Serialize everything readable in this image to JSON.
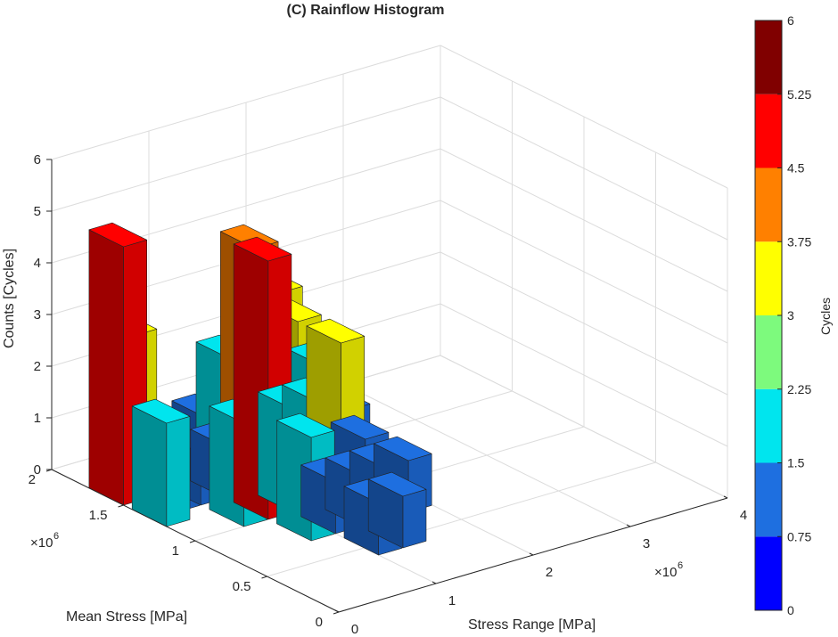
{
  "chart_data": {
    "type": "bar3d",
    "title": "(C) Rainflow Histogram",
    "xlabel": "Stress Range [MPa]",
    "ylabel": "Mean Stress [MPa]",
    "zlabel": "Counts [Cycles]",
    "x_exponent_label": "×10",
    "x_exponent_power": "6",
    "y_exponent_label": "×10",
    "y_exponent_power": "6",
    "xlim": [
      0,
      4000000
    ],
    "ylim": [
      0,
      2000000
    ],
    "zlim": [
      0,
      6
    ],
    "x_ticks": [
      {
        "value": 0,
        "label": "0"
      },
      {
        "value": 1000000,
        "label": "1"
      },
      {
        "value": 2000000,
        "label": "2"
      },
      {
        "value": 3000000,
        "label": "3"
      },
      {
        "value": 4000000,
        "label": "4"
      }
    ],
    "y_ticks": [
      {
        "value": 0,
        "label": "0"
      },
      {
        "value": 500000,
        "label": "0.5"
      },
      {
        "value": 1000000,
        "label": "1"
      },
      {
        "value": 1500000,
        "label": "1.5"
      },
      {
        "value": 2000000,
        "label": "2"
      }
    ],
    "z_ticks": [
      {
        "value": 0,
        "label": "0"
      },
      {
        "value": 1,
        "label": "1"
      },
      {
        "value": 2,
        "label": "2"
      },
      {
        "value": 3,
        "label": "3"
      },
      {
        "value": 4,
        "label": "4"
      },
      {
        "value": 5,
        "label": "5"
      },
      {
        "value": 6,
        "label": "6"
      }
    ],
    "grid": true,
    "colorbar": {
      "label": "Cycles",
      "range": [
        0,
        6
      ],
      "tick_labels": [
        "0",
        "0.75",
        "1.5",
        "2.25",
        "3",
        "3.75",
        "4.5",
        "5.25",
        "6"
      ],
      "colors": [
        "#0000ff",
        "#1e6fe0",
        "#00e5ee",
        "#7dfa7d",
        "#ffff00",
        "#ff8000",
        "#ff0000",
        "#800000"
      ]
    },
    "bins": [
      {
        "x": 0.0,
        "y": 1.5,
        "count": 5
      },
      {
        "x": 0.0,
        "y": 1.2,
        "count": 2
      },
      {
        "x": 0.25,
        "y": 1.6,
        "count": 3
      },
      {
        "x": 0.25,
        "y": 1.3,
        "count": 1
      },
      {
        "x": 0.5,
        "y": 1.6,
        "count": 1
      },
      {
        "x": 0.5,
        "y": 1.3,
        "count": 1
      },
      {
        "x": 0.5,
        "y": 1.0,
        "count": 2
      },
      {
        "x": 0.75,
        "y": 1.3,
        "count": 1
      },
      {
        "x": 0.75,
        "y": 1.0,
        "count": 5
      },
      {
        "x": 0.75,
        "y": 0.7,
        "count": 2
      },
      {
        "x": 1.0,
        "y": 1.6,
        "count": 1
      },
      {
        "x": 1.0,
        "y": 1.3,
        "count": 1
      },
      {
        "x": 1.0,
        "y": 1.0,
        "count": 2
      },
      {
        "x": 1.0,
        "y": 0.7,
        "count": 1
      },
      {
        "x": 1.0,
        "y": 0.4,
        "count": 1
      },
      {
        "x": 1.25,
        "y": 1.6,
        "count": 2
      },
      {
        "x": 1.25,
        "y": 1.3,
        "count": 3
      },
      {
        "x": 1.25,
        "y": 1.0,
        "count": 2
      },
      {
        "x": 1.25,
        "y": 0.7,
        "count": 1
      },
      {
        "x": 1.25,
        "y": 0.4,
        "count": 1
      },
      {
        "x": 1.5,
        "y": 1.6,
        "count": 4
      },
      {
        "x": 1.5,
        "y": 1.3,
        "count": 3
      },
      {
        "x": 1.5,
        "y": 1.0,
        "count": 3
      },
      {
        "x": 1.5,
        "y": 0.7,
        "count": 1
      },
      {
        "x": 1.75,
        "y": 1.6,
        "count": 3
      },
      {
        "x": 1.75,
        "y": 1.3,
        "count": 2
      },
      {
        "x": 1.75,
        "y": 1.0,
        "count": 1
      },
      {
        "x": 1.75,
        "y": 0.7,
        "count": 1
      },
      {
        "x": 2.0,
        "y": 1.6,
        "count": 2
      },
      {
        "x": 2.0,
        "y": 1.3,
        "count": 1
      }
    ]
  }
}
